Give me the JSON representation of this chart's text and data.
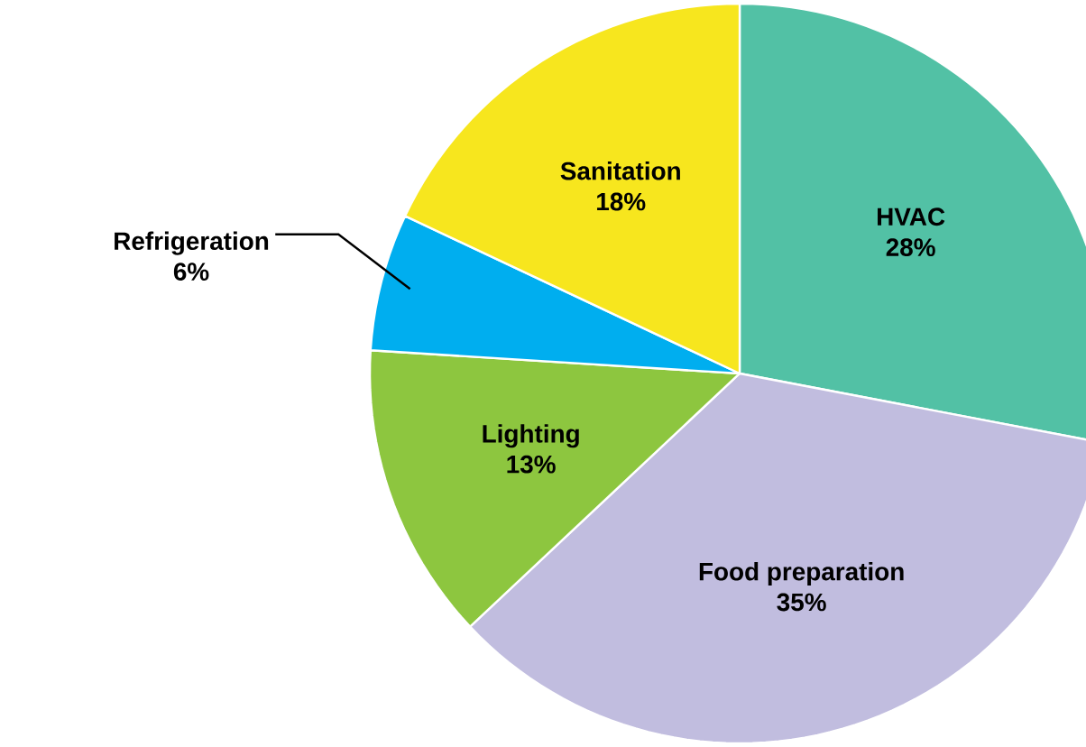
{
  "chart_data": {
    "type": "pie",
    "categories": [
      "HVAC",
      "Food preparation",
      "Lighting",
      "Refrigeration",
      "Sanitation"
    ],
    "values": [
      28,
      35,
      13,
      6,
      18
    ],
    "value_labels": [
      "28%",
      "35%",
      "13%",
      "6%",
      "18%"
    ],
    "colors": [
      "#52c1a5",
      "#c1bddf",
      "#8dc63f",
      "#00aeef",
      "#f7e61e"
    ]
  }
}
